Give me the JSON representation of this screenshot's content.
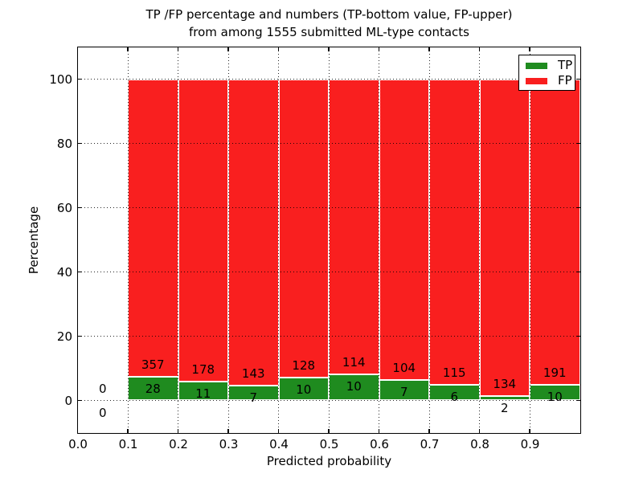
{
  "figure": {
    "title_line1": "TP /FP percentage and numbers (TP-bottom value, FP-upper)",
    "title_line2": "from among 1555 submitted ML-type contacts",
    "xlabel": "Predicted probability",
    "ylabel": "Percentage"
  },
  "legend": {
    "items": [
      {
        "label": "TP",
        "color": "#1f8b1f"
      },
      {
        "label": "FP",
        "color": "#f91f1f"
      }
    ]
  },
  "colors": {
    "tp": "#1f8b1f",
    "fp": "#f91f1f",
    "grid": "#000000",
    "axis": "#000000",
    "bar_edge": "#ffffff",
    "background": "#ffffff"
  },
  "chart_data": {
    "type": "bar",
    "stacked": true,
    "title": "TP /FP percentage and numbers (TP-bottom value, FP-upper) from among 1555 submitted ML-type contacts",
    "xlabel": "Predicted probability",
    "ylabel": "Percentage",
    "xlim": [
      0.0,
      1.0
    ],
    "ylim": [
      -10,
      110
    ],
    "x_ticks": [
      "0.0",
      "0.1",
      "0.2",
      "0.3",
      "0.4",
      "0.5",
      "0.6",
      "0.7",
      "0.8",
      "0.9"
    ],
    "y_ticks": [
      0,
      20,
      40,
      60,
      80,
      100
    ],
    "grid": true,
    "grid_style": "dotted",
    "legend_position": "upper-right",
    "total_contacts": 1555,
    "series": [
      {
        "name": "TP",
        "color": "#1f8b1f",
        "counts": [
          0,
          28,
          11,
          7,
          10,
          10,
          7,
          6,
          2,
          10
        ]
      },
      {
        "name": "FP",
        "color": "#f91f1f",
        "counts": [
          0,
          357,
          178,
          143,
          128,
          114,
          104,
          115,
          134,
          191
        ]
      }
    ],
    "bins": [
      {
        "x0": 0.0,
        "x1": 0.1,
        "tp": 0,
        "fp": 0,
        "tp_pct": 0,
        "fp_pct": 0
      },
      {
        "x0": 0.1,
        "x1": 0.2,
        "tp": 28,
        "fp": 357,
        "tp_pct": 7.27,
        "fp_pct": 92.73
      },
      {
        "x0": 0.2,
        "x1": 0.3,
        "tp": 11,
        "fp": 178,
        "tp_pct": 5.82,
        "fp_pct": 94.18
      },
      {
        "x0": 0.3,
        "x1": 0.4,
        "tp": 7,
        "fp": 143,
        "tp_pct": 4.67,
        "fp_pct": 95.33
      },
      {
        "x0": 0.4,
        "x1": 0.5,
        "tp": 10,
        "fp": 128,
        "tp_pct": 7.25,
        "fp_pct": 92.75
      },
      {
        "x0": 0.5,
        "x1": 0.6,
        "tp": 10,
        "fp": 114,
        "tp_pct": 8.06,
        "fp_pct": 91.94
      },
      {
        "x0": 0.6,
        "x1": 0.7,
        "tp": 7,
        "fp": 104,
        "tp_pct": 6.31,
        "fp_pct": 93.69
      },
      {
        "x0": 0.7,
        "x1": 0.8,
        "tp": 6,
        "fp": 115,
        "tp_pct": 4.96,
        "fp_pct": 95.04
      },
      {
        "x0": 0.8,
        "x1": 0.9,
        "tp": 2,
        "fp": 134,
        "tp_pct": 1.47,
        "fp_pct": 98.53
      },
      {
        "x0": 0.9,
        "x1": 1.0,
        "tp": 10,
        "fp": 191,
        "tp_pct": 4.98,
        "fp_pct": 95.02
      }
    ]
  }
}
